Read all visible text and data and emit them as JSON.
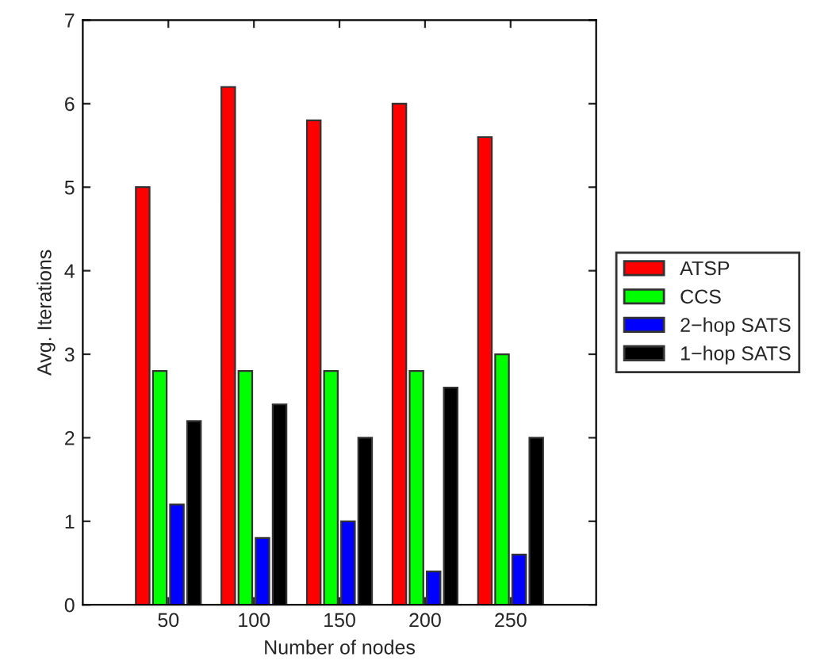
{
  "chart_data": {
    "type": "bar",
    "xlabel": "Number of nodes",
    "ylabel": "Avg. Iterations",
    "x": [
      50,
      100,
      150,
      200,
      250
    ],
    "series": [
      {
        "name": "ATSP",
        "color": "#ff0000",
        "values": [
          5,
          6.2,
          5.8,
          6,
          5.6
        ]
      },
      {
        "name": "CCS",
        "color": "#00ff00",
        "values": [
          2.8,
          2.8,
          2.8,
          2.8,
          3
        ]
      },
      {
        "name": "2−hop SATS",
        "color": "#0000ff",
        "values": [
          1.2,
          0.8,
          1,
          0.4,
          0.6
        ]
      },
      {
        "name": "1−hop SATS",
        "color": "#000000",
        "values": [
          2.2,
          2.4,
          2,
          2.6,
          2
        ]
      }
    ],
    "xlim": [
      0,
      300
    ],
    "xticks": [
      50,
      100,
      150,
      200,
      250
    ],
    "ylim": [
      0,
      7
    ],
    "yticks": [
      0,
      1,
      2,
      3,
      4,
      5,
      6,
      7
    ],
    "grid": false,
    "legend": "right"
  }
}
